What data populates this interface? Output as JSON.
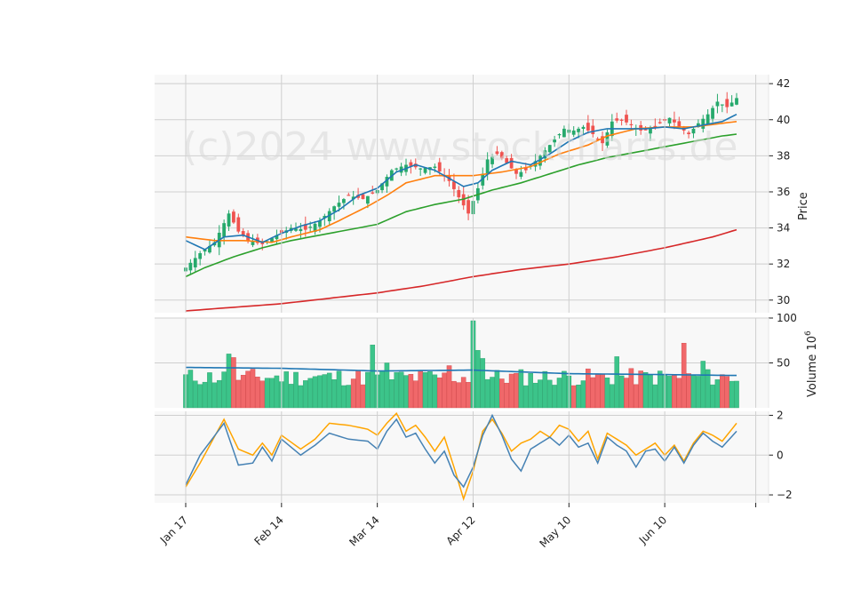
{
  "watermark": "(c)2024 www.stockcharts.de",
  "chart_data": [
    {
      "type": "candlestick",
      "ylabel": "Price",
      "ylim": [
        29.3,
        42.5
      ],
      "yticks": [
        30,
        32,
        34,
        36,
        38,
        40,
        42
      ],
      "x_dates": [
        "Jan 17",
        "Feb 14",
        "Mar 14",
        "Apr 12",
        "May 10",
        "Jun 10"
      ],
      "grid": true,
      "colors": {
        "up": "#26a96c",
        "down": "#ef5350",
        "ma1": "#1f77b4",
        "ma2": "#ff7f0e",
        "ma3": "#2ca02c",
        "ma4": "#d62728"
      },
      "close_anchors": [
        [
          0,
          31.8
        ],
        [
          3,
          32.6
        ],
        [
          6,
          33.2
        ],
        [
          9,
          34.8
        ],
        [
          11,
          33.8
        ],
        [
          13,
          33.3
        ],
        [
          16,
          33.1
        ],
        [
          19,
          33.6
        ],
        [
          22,
          34.0
        ],
        [
          25,
          33.9
        ],
        [
          28,
          34.4
        ],
        [
          31,
          35.2
        ],
        [
          34,
          35.8
        ],
        [
          37,
          35.6
        ],
        [
          40,
          36.1
        ],
        [
          43,
          37.2
        ],
        [
          46,
          37.5
        ],
        [
          49,
          37.3
        ],
        [
          52,
          37.4
        ],
        [
          55,
          36.6
        ],
        [
          57,
          35.7
        ],
        [
          59,
          34.8
        ],
        [
          61,
          36.2
        ],
        [
          63,
          37.8
        ],
        [
          65,
          38.1
        ],
        [
          67,
          37.6
        ],
        [
          69,
          37.0
        ],
        [
          71,
          37.2
        ],
        [
          73,
          37.7
        ],
        [
          75,
          38.3
        ],
        [
          77,
          38.9
        ],
        [
          79,
          39.5
        ],
        [
          81,
          39.4
        ],
        [
          83,
          39.6
        ],
        [
          85,
          39.2
        ],
        [
          87,
          38.7
        ],
        [
          89,
          39.9
        ],
        [
          91,
          40.0
        ],
        [
          93,
          39.7
        ],
        [
          95,
          39.4
        ],
        [
          97,
          39.5
        ],
        [
          99,
          39.8
        ],
        [
          101,
          40.1
        ],
        [
          103,
          39.6
        ],
        [
          105,
          39.2
        ],
        [
          107,
          39.8
        ],
        [
          109,
          40.3
        ],
        [
          111,
          41.0
        ],
        [
          113,
          40.7
        ],
        [
          115,
          41.2
        ]
      ],
      "ma_anchors": {
        "ma1": [
          [
            0,
            33.3
          ],
          [
            4,
            32.8
          ],
          [
            8,
            33.5
          ],
          [
            12,
            33.6
          ],
          [
            16,
            33.2
          ],
          [
            20,
            33.7
          ],
          [
            24,
            34.1
          ],
          [
            28,
            34.4
          ],
          [
            32,
            35.0
          ],
          [
            36,
            35.8
          ],
          [
            40,
            36.2
          ],
          [
            44,
            37.1
          ],
          [
            48,
            37.5
          ],
          [
            52,
            37.2
          ],
          [
            56,
            36.6
          ],
          [
            58,
            36.3
          ],
          [
            61,
            36.5
          ],
          [
            64,
            37.2
          ],
          [
            68,
            37.7
          ],
          [
            72,
            37.5
          ],
          [
            76,
            38.1
          ],
          [
            80,
            38.8
          ],
          [
            84,
            39.3
          ],
          [
            88,
            39.5
          ],
          [
            92,
            39.5
          ],
          [
            96,
            39.5
          ],
          [
            100,
            39.6
          ],
          [
            104,
            39.5
          ],
          [
            108,
            39.7
          ],
          [
            112,
            39.9
          ],
          [
            115,
            40.3
          ]
        ],
        "ma2": [
          [
            0,
            33.5
          ],
          [
            6,
            33.3
          ],
          [
            12,
            33.3
          ],
          [
            18,
            33.2
          ],
          [
            22,
            33.5
          ],
          [
            28,
            33.9
          ],
          [
            32,
            34.4
          ],
          [
            38,
            35.2
          ],
          [
            42,
            35.8
          ],
          [
            46,
            36.5
          ],
          [
            52,
            36.9
          ],
          [
            56,
            36.9
          ],
          [
            60,
            36.9
          ],
          [
            66,
            37.1
          ],
          [
            72,
            37.4
          ],
          [
            78,
            38.1
          ],
          [
            84,
            38.6
          ],
          [
            88,
            39.1
          ],
          [
            94,
            39.5
          ],
          [
            100,
            39.6
          ],
          [
            106,
            39.6
          ],
          [
            112,
            39.8
          ],
          [
            115,
            39.9
          ]
        ],
        "ma3": [
          [
            0,
            31.3
          ],
          [
            4,
            31.8
          ],
          [
            10,
            32.4
          ],
          [
            16,
            32.9
          ],
          [
            22,
            33.3
          ],
          [
            28,
            33.6
          ],
          [
            34,
            33.9
          ],
          [
            40,
            34.2
          ],
          [
            46,
            34.9
          ],
          [
            52,
            35.3
          ],
          [
            58,
            35.6
          ],
          [
            64,
            36.1
          ],
          [
            70,
            36.5
          ],
          [
            76,
            37.0
          ],
          [
            82,
            37.5
          ],
          [
            88,
            37.9
          ],
          [
            94,
            38.2
          ],
          [
            100,
            38.5
          ],
          [
            106,
            38.8
          ],
          [
            112,
            39.1
          ],
          [
            115,
            39.2
          ]
        ],
        "ma4": [
          [
            0,
            29.4
          ],
          [
            10,
            29.6
          ],
          [
            20,
            29.8
          ],
          [
            30,
            30.1
          ],
          [
            40,
            30.4
          ],
          [
            50,
            30.8
          ],
          [
            60,
            31.3
          ],
          [
            70,
            31.7
          ],
          [
            80,
            32.0
          ],
          [
            90,
            32.4
          ],
          [
            100,
            32.9
          ],
          [
            110,
            33.5
          ],
          [
            115,
            33.9
          ]
        ]
      }
    },
    {
      "type": "bar",
      "ylabel": "Volume  10^6",
      "ylim": [
        0,
        100
      ],
      "yticks": [
        50,
        100
      ],
      "spikes": [
        [
          9,
          60
        ],
        [
          10,
          56
        ],
        [
          39,
          70
        ],
        [
          60,
          97
        ],
        [
          61,
          64
        ],
        [
          62,
          55
        ],
        [
          90,
          57
        ],
        [
          104,
          72
        ],
        [
          108,
          52
        ],
        [
          55,
          47
        ],
        [
          42,
          50
        ]
      ],
      "avg_anchors": [
        [
          0,
          45
        ],
        [
          20,
          44
        ],
        [
          40,
          41
        ],
        [
          60,
          42
        ],
        [
          80,
          38
        ],
        [
          100,
          37
        ],
        [
          115,
          36
        ]
      ]
    },
    {
      "type": "line",
      "ylim": [
        -2.4,
        2.2
      ],
      "yticks": [
        -2,
        0,
        2
      ],
      "series_anchors": {
        "blue": [
          [
            0,
            -1.5
          ],
          [
            3,
            0
          ],
          [
            8,
            1.6
          ],
          [
            11,
            -0.5
          ],
          [
            14,
            -0.4
          ],
          [
            16,
            0.4
          ],
          [
            18,
            -0.3
          ],
          [
            20,
            0.8
          ],
          [
            24,
            0
          ],
          [
            27,
            0.5
          ],
          [
            30,
            1.1
          ],
          [
            34,
            0.8
          ],
          [
            38,
            0.7
          ],
          [
            40,
            0.3
          ],
          [
            42,
            1.2
          ],
          [
            44,
            1.8
          ],
          [
            46,
            0.9
          ],
          [
            48,
            1.1
          ],
          [
            50,
            0.3
          ],
          [
            52,
            -0.4
          ],
          [
            54,
            0.2
          ],
          [
            56,
            -1.0
          ],
          [
            58,
            -1.6
          ],
          [
            60,
            -0.6
          ],
          [
            62,
            1.0
          ],
          [
            64,
            2.0
          ],
          [
            66,
            1.0
          ],
          [
            68,
            -0.2
          ],
          [
            70,
            -0.8
          ],
          [
            72,
            0.3
          ],
          [
            74,
            0.6
          ],
          [
            76,
            0.9
          ],
          [
            78,
            0.5
          ],
          [
            80,
            1.0
          ],
          [
            82,
            0.4
          ],
          [
            84,
            0.6
          ],
          [
            86,
            -0.4
          ],
          [
            88,
            0.9
          ],
          [
            90,
            0.5
          ],
          [
            92,
            0.2
          ],
          [
            94,
            -0.6
          ],
          [
            96,
            0.2
          ],
          [
            98,
            0.3
          ],
          [
            100,
            -0.3
          ],
          [
            102,
            0.4
          ],
          [
            104,
            -0.4
          ],
          [
            106,
            0.5
          ],
          [
            108,
            1.1
          ],
          [
            110,
            0.7
          ],
          [
            112,
            0.4
          ],
          [
            115,
            1.2
          ]
        ],
        "orange": [
          [
            0,
            -1.6
          ],
          [
            3,
            -0.4
          ],
          [
            8,
            1.8
          ],
          [
            11,
            0.3
          ],
          [
            14,
            0
          ],
          [
            16,
            0.6
          ],
          [
            18,
            0
          ],
          [
            20,
            1.0
          ],
          [
            24,
            0.3
          ],
          [
            27,
            0.8
          ],
          [
            30,
            1.6
          ],
          [
            34,
            1.5
          ],
          [
            38,
            1.3
          ],
          [
            40,
            1.0
          ],
          [
            42,
            1.6
          ],
          [
            44,
            2.1
          ],
          [
            46,
            1.2
          ],
          [
            48,
            1.5
          ],
          [
            50,
            0.9
          ],
          [
            52,
            0.2
          ],
          [
            54,
            0.9
          ],
          [
            56,
            -0.6
          ],
          [
            58,
            -2.2
          ],
          [
            60,
            -0.8
          ],
          [
            62,
            1.2
          ],
          [
            64,
            1.8
          ],
          [
            66,
            1.1
          ],
          [
            68,
            0.2
          ],
          [
            70,
            0.6
          ],
          [
            72,
            0.8
          ],
          [
            74,
            1.2
          ],
          [
            76,
            0.9
          ],
          [
            78,
            1.5
          ],
          [
            80,
            1.3
          ],
          [
            82,
            0.7
          ],
          [
            84,
            1.2
          ],
          [
            86,
            -0.2
          ],
          [
            88,
            1.1
          ],
          [
            90,
            0.8
          ],
          [
            92,
            0.5
          ],
          [
            94,
            0
          ],
          [
            96,
            0.3
          ],
          [
            98,
            0.6
          ],
          [
            100,
            0
          ],
          [
            102,
            0.5
          ],
          [
            104,
            -0.3
          ],
          [
            106,
            0.6
          ],
          [
            108,
            1.2
          ],
          [
            110,
            1.0
          ],
          [
            112,
            0.7
          ],
          [
            115,
            1.6
          ]
        ]
      },
      "colors": {
        "blue": "#4682b4",
        "orange": "#ffa500"
      }
    }
  ]
}
